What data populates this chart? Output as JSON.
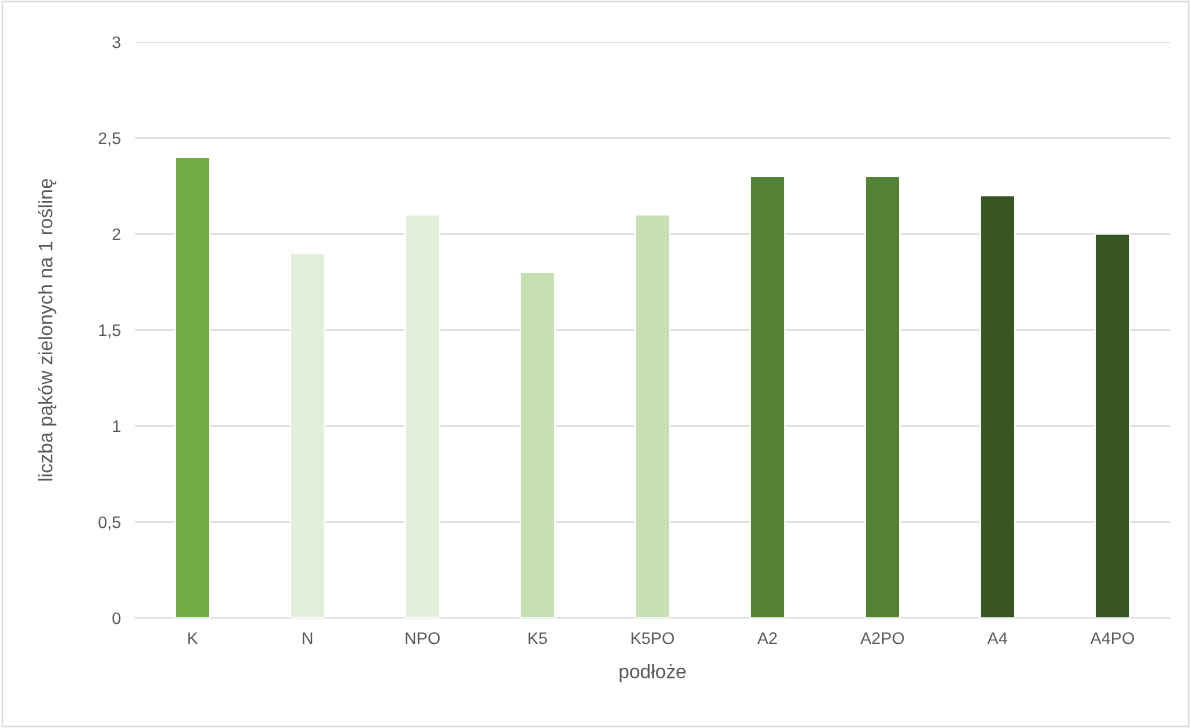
{
  "chart_data": {
    "type": "bar",
    "xlabel": "podłoże",
    "ylabel": "liczba pąków zielonych na 1 roślinę",
    "categories": [
      "K",
      "N",
      "NPO",
      "K5",
      "K5PO",
      "A2",
      "A2PO",
      "A4",
      "A4PO"
    ],
    "values": [
      2.4,
      1.9,
      2.1,
      1.8,
      2.1,
      2.3,
      2.3,
      2.2,
      2.0
    ],
    "colors": [
      "#70ad47",
      "#e2efda",
      "#e2efda",
      "#c6e0b4",
      "#c6e0b4",
      "#548235",
      "#548235",
      "#375623",
      "#375623"
    ],
    "ylim": [
      0,
      3
    ],
    "yticks": [
      0,
      {
        "value": 0.5,
        "label": "0,5"
      },
      1,
      {
        "value": 1.5,
        "label": "1,5"
      },
      2,
      {
        "value": 2.5,
        "label": "2,5"
      },
      3
    ],
    "grid": "y",
    "legend": false
  }
}
